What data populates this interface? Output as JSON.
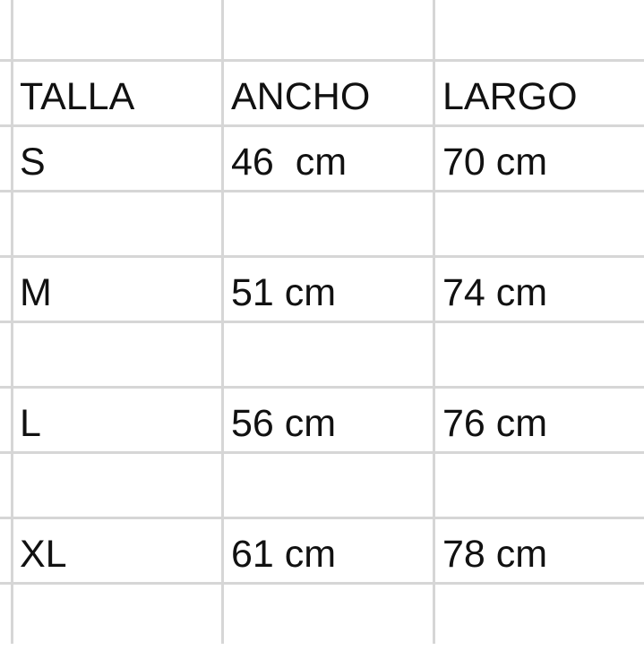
{
  "sheet": {
    "header": [
      "TALLA",
      "ANCHO",
      "LARGO"
    ],
    "rows": [
      [
        "",
        "",
        ""
      ],
      [
        "TALLA",
        "ANCHO",
        "LARGO"
      ],
      [
        "S",
        "46  cm",
        "70 cm"
      ],
      [
        "",
        "",
        ""
      ],
      [
        "M",
        "51 cm",
        "74 cm"
      ],
      [
        "",
        "",
        ""
      ],
      [
        "L",
        "56 cm",
        "76 cm"
      ],
      [
        "",
        "",
        ""
      ],
      [
        "XL",
        "61 cm",
        "78 cm"
      ],
      [
        "",
        "",
        ""
      ]
    ]
  }
}
